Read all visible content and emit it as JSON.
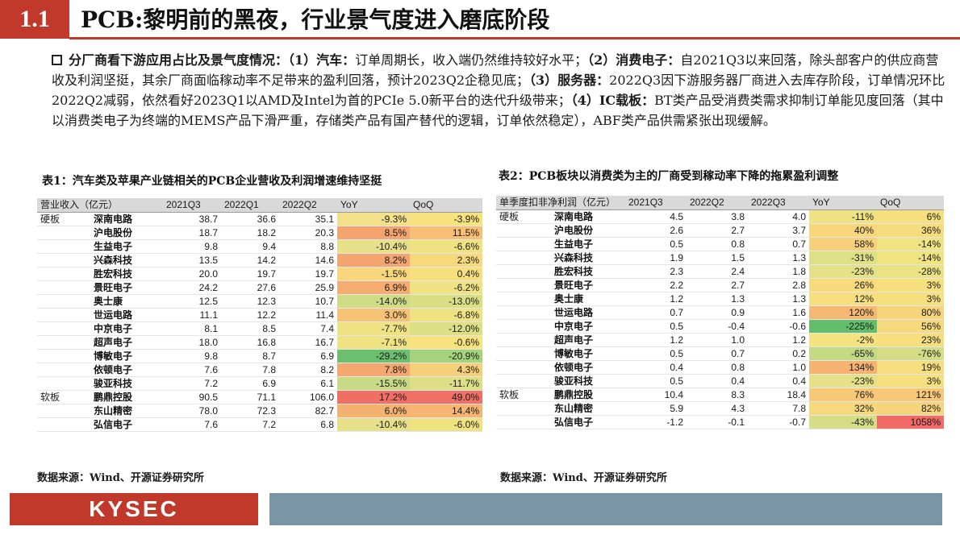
{
  "header": {
    "section_number": "1.1",
    "title": "PCB:黎明前的黑夜，行业景气度进入磨底阶段"
  },
  "summary": {
    "lead": "分厂商看下游应用占比及景气度情况：",
    "p1_label": "（1）汽车：",
    "p1_text": "订单周期长，收入端仍然维持较好水平；",
    "p2_label": "（2）消费电子：",
    "p2_text": "自2021Q3以来回落，除头部客户的供应商营收及利润坚挺，其余厂商面临稼动率不足带来的盈利回落，预计2023Q2企稳见底；",
    "p3_label": "（3）服务器：",
    "p3_text": "2022Q3因下游服务器厂商进入去库存阶段，订单情况环比2022Q2减弱，依然看好2023Q1以AMD及Intel为首的PCIe 5.0新平台的迭代升级带来；",
    "p4_label": "（4）IC载板：",
    "p4_text": "BT类产品受消费类需求抑制订单能见度回落（其中以消费类电子为终端的MEMS产品下滑严重，存储类产品有国产替代的逻辑，订单依然稳定），ABF类产品供需紧张出现缓解。"
  },
  "table1": {
    "title": "表1：汽车类及苹果产业链相关的PCB企业营收及利润增速维持坚挺",
    "headers": [
      "营业收入（亿元）",
      "",
      "2021Q3",
      "2022Q1",
      "2022Q2",
      "YoY",
      "QoQ"
    ],
    "rows": [
      {
        "seg": "硬板",
        "co": "深南电路",
        "a": "38.7",
        "b": "36.6",
        "c": "35.1",
        "yoy": "-9.3%",
        "qoq": "-3.9%",
        "yoy_color": "#f2e08a",
        "qoq_color": "#f6e27f"
      },
      {
        "seg": "",
        "co": "沪电股份",
        "a": "18.7",
        "b": "18.2",
        "c": "20.3",
        "yoy": "8.5%",
        "qoq": "11.5%",
        "yoy_color": "#f4a46e",
        "qoq_color": "#f7be74"
      },
      {
        "seg": "",
        "co": "生益电子",
        "a": "9.8",
        "b": "9.4",
        "c": "8.8",
        "yoy": "-10.4%",
        "qoq": "-6.6%",
        "yoy_color": "#e6e08a",
        "qoq_color": "#eee282"
      },
      {
        "seg": "",
        "co": "兴森科技",
        "a": "13.5",
        "b": "14.2",
        "c": "14.6",
        "yoy": "8.2%",
        "qoq": "2.3%",
        "yoy_color": "#f4a46e",
        "qoq_color": "#f7d97b"
      },
      {
        "seg": "",
        "co": "胜宏科技",
        "a": "20.0",
        "b": "19.7",
        "c": "19.7",
        "yoy": "-1.5%",
        "qoq": "0.4%",
        "yoy_color": "#f7d67d",
        "qoq_color": "#f6e07e"
      },
      {
        "seg": "",
        "co": "景旺电子",
        "a": "24.2",
        "b": "27.6",
        "c": "25.9",
        "yoy": "6.9%",
        "qoq": "-6.2%",
        "yoy_color": "#f4ac70",
        "qoq_color": "#eee282"
      },
      {
        "seg": "",
        "co": "奥士康",
        "a": "12.5",
        "b": "12.3",
        "c": "10.7",
        "yoy": "-14.0%",
        "qoq": "-13.0%",
        "yoy_color": "#cfdc86",
        "qoq_color": "#dadf86"
      },
      {
        "seg": "",
        "co": "世运电路",
        "a": "11.1",
        "b": "12.2",
        "c": "11.4",
        "yoy": "3.0%",
        "qoq": "-6.8%",
        "yoy_color": "#f5c276",
        "qoq_color": "#eee282"
      },
      {
        "seg": "",
        "co": "中京电子",
        "a": "8.1",
        "b": "8.5",
        "c": "7.4",
        "yoy": "-7.7%",
        "qoq": "-12.0%",
        "yoy_color": "#eee282",
        "qoq_color": "#dcdf86"
      },
      {
        "seg": "",
        "co": "超声电子",
        "a": "18.0",
        "b": "16.8",
        "c": "16.7",
        "yoy": "-7.1%",
        "qoq": "-0.6%",
        "yoy_color": "#eee282",
        "qoq_color": "#f6e27f"
      },
      {
        "seg": "",
        "co": "博敏电子",
        "a": "9.8",
        "b": "8.7",
        "c": "6.9",
        "yoy": "-29.2%",
        "qoq": "-20.9%",
        "yoy_color": "#6cbf6f",
        "qoq_color": "#a5d27d"
      },
      {
        "seg": "",
        "co": "依顿电子",
        "a": "7.6",
        "b": "7.8",
        "c": "8.2",
        "yoy": "7.8%",
        "qoq": "4.3%",
        "yoy_color": "#f4a86f",
        "qoq_color": "#f6cf79"
      },
      {
        "seg": "",
        "co": "骏亚科技",
        "a": "7.2",
        "b": "6.9",
        "c": "6.1",
        "yoy": "-15.5%",
        "qoq": "-11.7%",
        "yoy_color": "#c8da85",
        "qoq_color": "#dcdf86"
      },
      {
        "seg": "软板",
        "co": "鹏鼎控股",
        "a": "90.5",
        "b": "71.1",
        "c": "106.0",
        "yoy": "17.2%",
        "qoq": "49.0%",
        "yoy_color": "#ef6f64",
        "qoq_color": "#f07066"
      },
      {
        "seg": "",
        "co": "东山精密",
        "a": "78.0",
        "b": "72.3",
        "c": "82.7",
        "yoy": "6.0%",
        "qoq": "14.4%",
        "yoy_color": "#f4b271",
        "qoq_color": "#f6b573"
      },
      {
        "seg": "",
        "co": "弘信电子",
        "a": "7.6",
        "b": "7.2",
        "c": "6.8",
        "yoy": "-10.4%",
        "qoq": "-6.0%",
        "yoy_color": "#e6e08a",
        "qoq_color": "#eee282"
      }
    ]
  },
  "table2": {
    "title": "表2：PCB板块以消费类为主的厂商受到稼动率下降的拖累盈利调整",
    "headers": [
      "单季度扣非净利润（亿元）",
      "",
      "2021Q3",
      "2022Q2",
      "2022Q3",
      "YoY",
      "QoQ"
    ],
    "rows": [
      {
        "seg": "硬板",
        "co": "深南电路",
        "a": "4.5",
        "b": "3.8",
        "c": "4.0",
        "yoy": "-11%",
        "qoq": "6%",
        "yoy_color": "#eee282",
        "qoq_color": "#f6e07e"
      },
      {
        "seg": "",
        "co": "沪电股份",
        "a": "2.6",
        "b": "2.7",
        "c": "3.7",
        "yoy": "40%",
        "qoq": "36%",
        "yoy_color": "#f7d67d",
        "qoq_color": "#f7dc7e"
      },
      {
        "seg": "",
        "co": "生益电子",
        "a": "0.5",
        "b": "0.8",
        "c": "0.7",
        "yoy": "58%",
        "qoq": "-14%",
        "yoy_color": "#f6d07b",
        "qoq_color": "#f0e382"
      },
      {
        "seg": "",
        "co": "兴森科技",
        "a": "1.9",
        "b": "1.5",
        "c": "1.3",
        "yoy": "-31%",
        "qoq": "-14%",
        "yoy_color": "#dde087",
        "qoq_color": "#f0e382"
      },
      {
        "seg": "",
        "co": "胜宏科技",
        "a": "2.3",
        "b": "2.4",
        "c": "1.8",
        "yoy": "-23%",
        "qoq": "-28%",
        "yoy_color": "#e4e188",
        "qoq_color": "#eae283"
      },
      {
        "seg": "",
        "co": "景旺电子",
        "a": "2.2",
        "b": "2.7",
        "c": "2.8",
        "yoy": "26%",
        "qoq": "3%",
        "yoy_color": "#f7da7e",
        "qoq_color": "#f6e07e"
      },
      {
        "seg": "",
        "co": "奥士康",
        "a": "1.2",
        "b": "1.3",
        "c": "1.3",
        "yoy": "12%",
        "qoq": "3%",
        "yoy_color": "#f7de7e",
        "qoq_color": "#f6e07e"
      },
      {
        "seg": "",
        "co": "世运电路",
        "a": "0.7",
        "b": "0.9",
        "c": "1.6",
        "yoy": "120%",
        "qoq": "80%",
        "yoy_color": "#f5b873",
        "qoq_color": "#f6d47c"
      },
      {
        "seg": "",
        "co": "中京电子",
        "a": "0.5",
        "b": "-0.4",
        "c": "-0.6",
        "yoy": "-225%",
        "qoq": "56%",
        "yoy_color": "#63be6b",
        "qoq_color": "#f6d97d"
      },
      {
        "seg": "",
        "co": "超声电子",
        "a": "1.2",
        "b": "1.0",
        "c": "1.2",
        "yoy": "-2%",
        "qoq": "23%",
        "yoy_color": "#f4e381",
        "qoq_color": "#f6dd7e"
      },
      {
        "seg": "",
        "co": "博敏电子",
        "a": "0.5",
        "b": "0.7",
        "c": "0.2",
        "yoy": "-65%",
        "qoq": "-76%",
        "yoy_color": "#c3d984",
        "qoq_color": "#d4dd86"
      },
      {
        "seg": "",
        "co": "依顿电子",
        "a": "0.4",
        "b": "0.8",
        "c": "1.0",
        "yoy": "134%",
        "qoq": "19%",
        "yoy_color": "#f5b271",
        "qoq_color": "#f6de7e"
      },
      {
        "seg": "",
        "co": "骏亚科技",
        "a": "0.5",
        "b": "0.4",
        "c": "0.4",
        "yoy": "-23%",
        "qoq": "3%",
        "yoy_color": "#e4e188",
        "qoq_color": "#f6e07e"
      },
      {
        "seg": "软板",
        "co": "鹏鼎控股",
        "a": "10.4",
        "b": "8.3",
        "c": "18.4",
        "yoy": "76%",
        "qoq": "121%",
        "yoy_color": "#f6c878",
        "qoq_color": "#f6c877"
      },
      {
        "seg": "",
        "co": "东山精密",
        "a": "5.9",
        "b": "4.3",
        "c": "7.8",
        "yoy": "32%",
        "qoq": "82%",
        "yoy_color": "#f7d97d",
        "qoq_color": "#f6d47c"
      },
      {
        "seg": "",
        "co": "弘信电子",
        "a": "-1.2",
        "b": "-0.1",
        "c": "-0.7",
        "yoy": "-43%",
        "qoq": "1058%",
        "yoy_color": "#d5de86",
        "qoq_color": "#f16a68"
      }
    ]
  },
  "sources": {
    "left": "数据来源：Wind、开源证券研究所",
    "right": "数据来源：Wind、开源证券研究所"
  },
  "footer": {
    "logo": "KYSEC"
  }
}
